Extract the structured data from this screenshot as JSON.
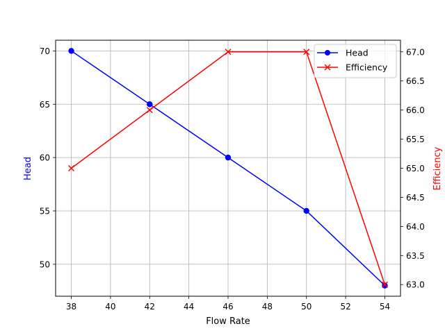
{
  "chart_data": {
    "type": "line",
    "title": "",
    "xlabel": "Flow Rate",
    "ylabel": "Head",
    "y2label": "Efficiency",
    "x": [
      38,
      42,
      46,
      50,
      54
    ],
    "xlim": [
      37.2,
      54.8
    ],
    "ylim": [
      47.0,
      71.0
    ],
    "y2lim": [
      62.8,
      67.2
    ],
    "xticks": [
      "38",
      "40",
      "42",
      "44",
      "46",
      "48",
      "50",
      "52",
      "54"
    ],
    "yticks": [
      "50",
      "55",
      "60",
      "65",
      "70"
    ],
    "y2ticks": [
      "63.0",
      "63.5",
      "64.0",
      "64.5",
      "65.0",
      "65.5",
      "66.0",
      "66.5",
      "67.0"
    ],
    "grid": true,
    "legend_position": "upper right",
    "series": [
      {
        "name": "Head",
        "axis": "left",
        "color": "#0000ff",
        "marker": "circle",
        "values": [
          70,
          65,
          60,
          55,
          48
        ]
      },
      {
        "name": "Efficiency",
        "axis": "right",
        "color": "#ff0000",
        "marker": "x",
        "values": [
          65.0,
          66.0,
          67.0,
          67.0,
          63.0
        ]
      }
    ]
  },
  "legend": {
    "items": [
      {
        "label": "Head"
      },
      {
        "label": "Efficiency"
      }
    ]
  }
}
